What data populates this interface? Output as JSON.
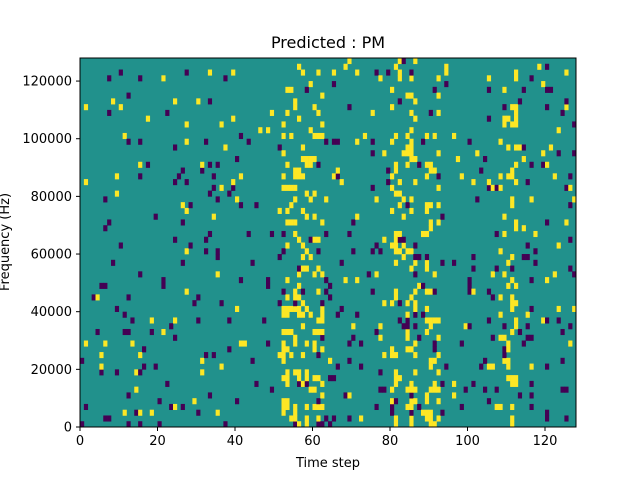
{
  "chart_data": {
    "type": "heatmap",
    "title": "Predicted : PM",
    "xlabel": "Time step",
    "ylabel": "Frequency (Hz)",
    "xlim": [
      0,
      128
    ],
    "ylim": [
      0,
      128000
    ],
    "xticks": [
      0,
      20,
      40,
      60,
      80,
      100,
      120
    ],
    "yticks": [
      0,
      20000,
      40000,
      60000,
      80000,
      100000,
      120000
    ],
    "rows": 64,
    "cols": 128,
    "colors": {
      "background": "#21918c",
      "low": "#440154",
      "high": "#fde725"
    },
    "grid": false,
    "legend": "none"
  }
}
